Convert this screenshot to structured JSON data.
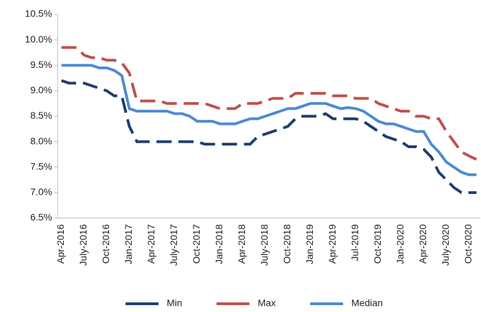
{
  "chart_data": {
    "type": "line",
    "categories": [
      "Apr-2016",
      null,
      null,
      "July-2016",
      null,
      null,
      "Oct-2016",
      null,
      null,
      "Jan-2017",
      null,
      null,
      "Apr-2017",
      null,
      null,
      "July-2017",
      null,
      null,
      "Oct-2017",
      null,
      null,
      "Jan-2018",
      null,
      null,
      "Apr-2018",
      null,
      null,
      "July-2018",
      null,
      null,
      "Oct-2018",
      null,
      null,
      "Jan-2019",
      null,
      null,
      "Apr-2019",
      null,
      null,
      "Jul-2019",
      null,
      null,
      "Oct-2019",
      null,
      null,
      "Jan-2020",
      null,
      null,
      "Apr-2020",
      null,
      null,
      "July-2020",
      null,
      null,
      "Oct-2020",
      null
    ],
    "series": [
      {
        "name": "Min",
        "color": "#1f3e6e",
        "style": "dashed",
        "values": [
          9.2,
          9.15,
          9.15,
          9.15,
          9.1,
          9.05,
          9.0,
          8.9,
          8.9,
          8.3,
          8.0,
          8.0,
          8.0,
          8.0,
          8.0,
          8.0,
          8.0,
          8.0,
          8.0,
          7.95,
          7.95,
          7.95,
          7.95,
          7.95,
          7.95,
          7.95,
          8.1,
          8.15,
          8.2,
          8.25,
          8.3,
          8.45,
          8.5,
          8.5,
          8.5,
          8.55,
          8.45,
          8.45,
          8.45,
          8.45,
          8.4,
          8.3,
          8.2,
          8.1,
          8.05,
          8.0,
          7.9,
          7.9,
          7.85,
          7.7,
          7.4,
          7.25,
          7.1,
          7.0,
          7.0,
          7.0
        ]
      },
      {
        "name": "Max",
        "color": "#c0504d",
        "style": "dashed",
        "values": [
          9.85,
          9.85,
          9.85,
          9.7,
          9.65,
          9.65,
          9.6,
          9.6,
          9.55,
          9.35,
          8.8,
          8.8,
          8.8,
          8.8,
          8.75,
          8.75,
          8.75,
          8.75,
          8.75,
          8.75,
          8.7,
          8.65,
          8.65,
          8.65,
          8.75,
          8.75,
          8.75,
          8.8,
          8.85,
          8.85,
          8.85,
          8.95,
          8.95,
          8.95,
          8.95,
          8.95,
          8.9,
          8.9,
          8.9,
          8.85,
          8.85,
          8.85,
          8.75,
          8.7,
          8.65,
          8.6,
          8.6,
          8.5,
          8.5,
          8.45,
          8.45,
          8.2,
          8.0,
          7.8,
          7.72,
          7.65
        ]
      },
      {
        "name": "Median",
        "color": "#4f8ad0",
        "style": "solid",
        "values": [
          9.5,
          9.5,
          9.5,
          9.5,
          9.5,
          9.45,
          9.45,
          9.4,
          9.3,
          8.65,
          8.6,
          8.6,
          8.6,
          8.6,
          8.6,
          8.55,
          8.55,
          8.5,
          8.4,
          8.4,
          8.4,
          8.35,
          8.35,
          8.35,
          8.4,
          8.45,
          8.45,
          8.5,
          8.55,
          8.6,
          8.65,
          8.65,
          8.7,
          8.75,
          8.75,
          8.75,
          8.7,
          8.65,
          8.67,
          8.65,
          8.6,
          8.5,
          8.4,
          8.35,
          8.35,
          8.3,
          8.25,
          8.2,
          8.2,
          7.95,
          7.8,
          7.6,
          7.5,
          7.4,
          7.35,
          7.35
        ]
      }
    ],
    "ylim": [
      6.5,
      10.5
    ],
    "yticks": [
      {
        "value": 6.5,
        "label": "6.5%"
      },
      {
        "value": 7.0,
        "label": "7.0%"
      },
      {
        "value": 7.5,
        "label": "7.5%"
      },
      {
        "value": 8.0,
        "label": "8.0%"
      },
      {
        "value": 8.5,
        "label": "8.5%"
      },
      {
        "value": 9.0,
        "label": "9.0%"
      },
      {
        "value": 9.5,
        "label": "9.5%"
      },
      {
        "value": 10.0,
        "label": "10.0%"
      },
      {
        "value": 10.5,
        "label": "10.5%"
      }
    ],
    "legend": "bottom"
  }
}
